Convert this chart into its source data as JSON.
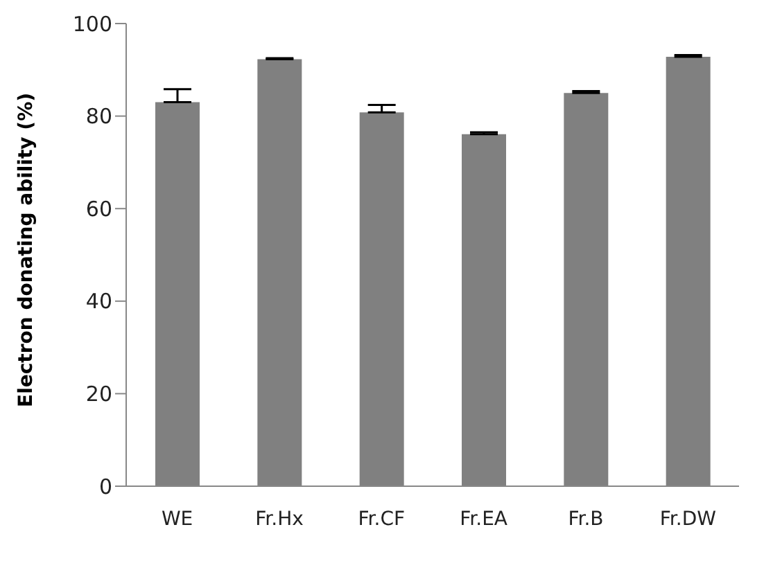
{
  "chart_data": {
    "type": "bar",
    "ylabel": "Electron donating ability (%)",
    "categories": [
      "WE",
      "Fr.Hx",
      "Fr.CF",
      "Fr.EA",
      "Fr.B",
      "Fr.DW"
    ],
    "values": [
      83.0,
      92.3,
      80.8,
      76.1,
      85.0,
      92.8
    ],
    "errors": [
      [
        83.0,
        85.8
      ],
      [
        92.3,
        92.5
      ],
      [
        80.8,
        82.4
      ],
      [
        76.1,
        76.5
      ],
      [
        85.0,
        85.4
      ],
      [
        92.8,
        93.2
      ]
    ],
    "color": "#808080",
    "ylim": [
      0,
      100
    ],
    "yticks": [
      0,
      20,
      40,
      60,
      80,
      100
    ],
    "grid": false,
    "legend": false
  }
}
